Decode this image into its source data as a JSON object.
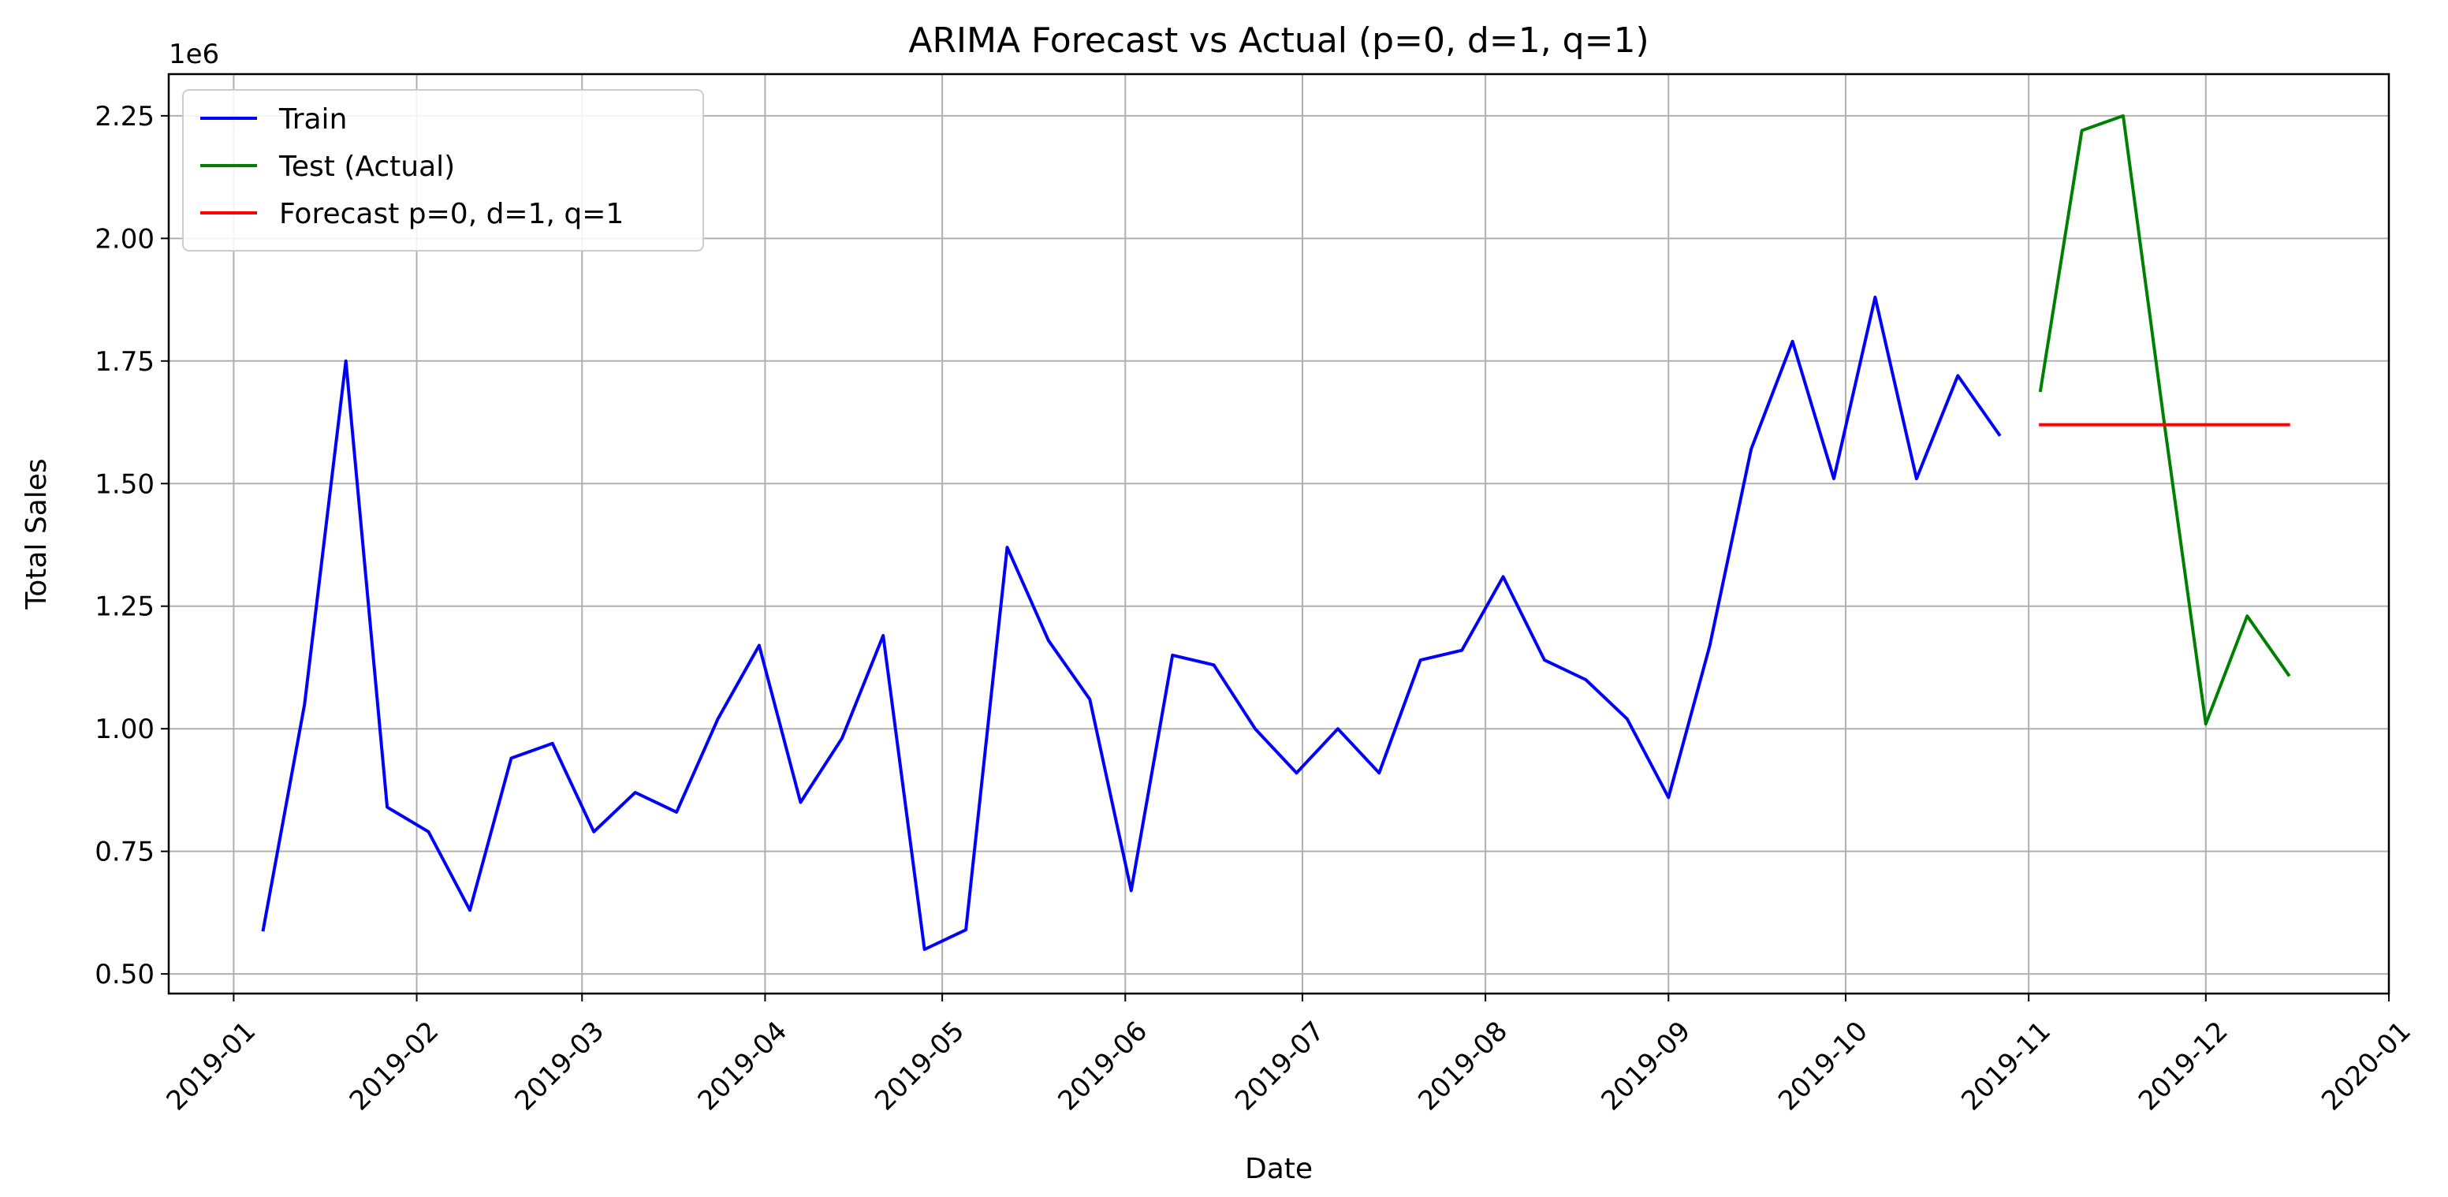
{
  "chart_data": {
    "type": "line",
    "title": "ARIMA Forecast vs Actual (p=0, d=1, q=1)",
    "xlabel": "Date",
    "ylabel": "Total Sales",
    "y_offset_label": "1e6",
    "xlim": [
      "2018-12-21",
      "2020-01-01"
    ],
    "ylim": [
      0.46,
      2.335
    ],
    "y_scale_factor": 1000000,
    "grid": true,
    "legend_position": "top-left",
    "x_ticks": [
      "2019-01",
      "2019-02",
      "2019-03",
      "2019-04",
      "2019-05",
      "2019-06",
      "2019-07",
      "2019-08",
      "2019-09",
      "2019-10",
      "2019-11",
      "2019-12",
      "2020-01"
    ],
    "x_tick_dates": [
      "2019-01-01",
      "2019-02-01",
      "2019-03-01",
      "2019-04-01",
      "2019-05-01",
      "2019-06-01",
      "2019-07-01",
      "2019-08-01",
      "2019-09-01",
      "2019-10-01",
      "2019-11-01",
      "2019-12-01",
      "2020-01-01"
    ],
    "y_ticks": [
      "0.50",
      "0.75",
      "1.00",
      "1.25",
      "1.50",
      "1.75",
      "2.00",
      "2.25"
    ],
    "y_tick_values": [
      0.5,
      0.75,
      1.0,
      1.25,
      1.5,
      1.75,
      2.0,
      2.25
    ],
    "series": [
      {
        "name": "Train",
        "color": "#0000ff",
        "x": [
          "2019-01-06",
          "2019-01-13",
          "2019-01-20",
          "2019-01-27",
          "2019-02-03",
          "2019-02-10",
          "2019-02-17",
          "2019-02-24",
          "2019-03-03",
          "2019-03-10",
          "2019-03-17",
          "2019-03-24",
          "2019-03-31",
          "2019-04-07",
          "2019-04-14",
          "2019-04-21",
          "2019-04-28",
          "2019-05-05",
          "2019-05-12",
          "2019-05-19",
          "2019-05-26",
          "2019-06-02",
          "2019-06-09",
          "2019-06-16",
          "2019-06-23",
          "2019-06-30",
          "2019-07-07",
          "2019-07-14",
          "2019-07-21",
          "2019-07-28",
          "2019-08-04",
          "2019-08-11",
          "2019-08-18",
          "2019-08-25",
          "2019-09-01",
          "2019-09-08",
          "2019-09-15",
          "2019-09-22",
          "2019-09-29",
          "2019-10-06",
          "2019-10-13",
          "2019-10-20",
          "2019-10-27"
        ],
        "y": [
          0.59,
          1.05,
          1.75,
          0.84,
          0.79,
          0.63,
          0.94,
          0.97,
          0.79,
          0.87,
          0.83,
          1.02,
          1.17,
          0.85,
          0.98,
          1.19,
          0.55,
          0.59,
          1.37,
          1.18,
          1.06,
          0.67,
          1.15,
          1.13,
          1.0,
          0.91,
          1.0,
          0.91,
          1.14,
          1.16,
          1.31,
          1.14,
          1.1,
          1.02,
          0.86,
          1.17,
          1.57,
          1.79,
          1.51,
          1.88,
          1.51,
          1.72,
          1.6
        ]
      },
      {
        "name": "Test (Actual)",
        "color": "#008000",
        "x": [
          "2019-11-03",
          "2019-11-10",
          "2019-11-17",
          "2019-11-24",
          "2019-12-01",
          "2019-12-08",
          "2019-12-15"
        ],
        "y": [
          1.69,
          2.22,
          2.25,
          1.62,
          1.01,
          1.23,
          1.11
        ]
      },
      {
        "name": "Forecast p=0, d=1, q=1",
        "color": "#ff0000",
        "x": [
          "2019-11-03",
          "2019-12-15"
        ],
        "y": [
          1.62,
          1.62
        ]
      }
    ]
  }
}
